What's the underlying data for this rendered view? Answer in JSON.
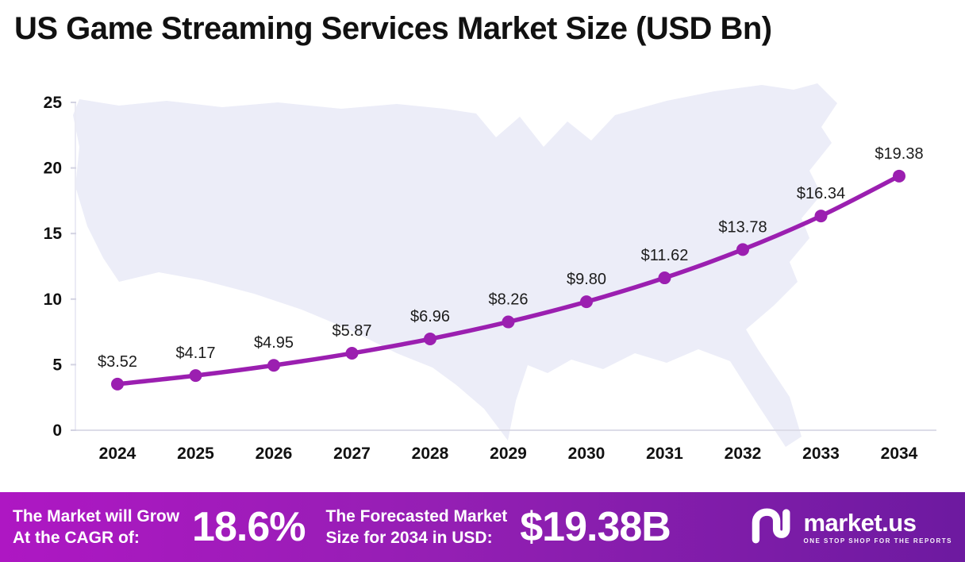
{
  "chart_data": {
    "type": "line",
    "title": "US Game Streaming Services Market Size (USD Bn)",
    "categories": [
      "2024",
      "2025",
      "2026",
      "2027",
      "2028",
      "2029",
      "2030",
      "2031",
      "2032",
      "2033",
      "2034"
    ],
    "values": [
      3.52,
      4.17,
      4.95,
      5.87,
      6.96,
      8.26,
      9.8,
      11.62,
      13.78,
      16.34,
      19.38
    ],
    "point_labels": [
      "$3.52",
      "$4.17",
      "$4.95",
      "$5.87",
      "$6.96",
      "$8.26",
      "$9.80",
      "$11.62",
      "$13.78",
      "$16.34",
      "$19.38"
    ],
    "yticks": [
      0,
      5,
      10,
      15,
      20,
      25
    ],
    "ylim": [
      0,
      25
    ],
    "xlabel": "",
    "ylabel": "",
    "grid": false,
    "legend": "none",
    "line_color": "#9b1fb0"
  },
  "banner": {
    "cagr_label_line1": "The Market will Grow",
    "cagr_label_line2": "At the CAGR of:",
    "cagr_value": "18.6%",
    "forecast_label_line1": "The Forecasted Market",
    "forecast_label_line2": "Size for 2034 in USD:",
    "forecast_value": "$19.38B",
    "brand": "market.us",
    "brand_tagline": "ONE STOP SHOP FOR THE REPORTS"
  }
}
